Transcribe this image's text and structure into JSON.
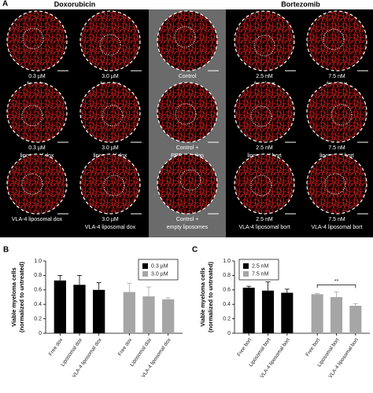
{
  "panel_a": {
    "letter": "A",
    "title_left": "Doxorubicin",
    "title_right": "Bortezomib",
    "images": [
      {
        "lines": [
          "0.3 µM",
          "free dox"
        ]
      },
      {
        "lines": [
          "3.0 µM",
          "free dox"
        ]
      },
      {
        "lines": [
          "Control"
        ]
      },
      {
        "lines": [
          "2.5 nM",
          "free bort"
        ]
      },
      {
        "lines": [
          "7.5 nM",
          "free bort"
        ]
      },
      {
        "lines": [
          "0.3 µM",
          "liposomal dox"
        ]
      },
      {
        "lines": [
          "3.0 µM",
          "liposomal dox"
        ]
      },
      {
        "lines": [
          "Control +",
          "PBS injection"
        ]
      },
      {
        "lines": [
          "2.5 nM",
          "liposomal bort"
        ]
      },
      {
        "lines": [
          "7.5 nM",
          "liposomal bort"
        ]
      },
      {
        "lines": [
          "VLA-4 liposomal dox"
        ]
      },
      {
        "lines": [
          "3.0 µM",
          "VLA-4 liposomal dox"
        ]
      },
      {
        "lines": [
          "Control +",
          "empty liposomes"
        ]
      },
      {
        "lines": [
          "2.5 nM",
          "VLA-4 liposomal bort"
        ]
      },
      {
        "lines": [
          "7.5 nM",
          "VLA-4 liposomal bort"
        ]
      }
    ]
  },
  "chart_data": [
    {
      "type": "bar",
      "letter": "B",
      "ylabel": [
        "Viable myeloma cells",
        "(normalized to untreated)"
      ],
      "categories": [
        "Free dox",
        "Liposomal dox",
        "VLA-4 liposomal dox",
        "Free dox",
        "Liposomal dox",
        "VLA-4 liposomal dox"
      ],
      "series": [
        {
          "name": "0.3 µM",
          "color": "#000000",
          "values": [
            0.73,
            0.67,
            0.6,
            null,
            null,
            null
          ],
          "errors": [
            0.07,
            0.13,
            0.1,
            null,
            null,
            null
          ]
        },
        {
          "name": "3.0 µM",
          "color": "#a6a6a6",
          "values": [
            null,
            null,
            null,
            0.57,
            0.51,
            0.47
          ],
          "errors": [
            null,
            null,
            null,
            0.12,
            0.13,
            0.02
          ]
        }
      ],
      "ylim": [
        0,
        1
      ],
      "yticks": [
        0,
        0.2,
        0.4,
        0.6,
        0.8,
        {
          "value": 1,
          "label": "1.0"
        }
      ],
      "legend": "top-right"
    },
    {
      "type": "bar",
      "letter": "C",
      "ylabel": [
        "Viable myeloma cells",
        "(normalized to untreated)"
      ],
      "categories": [
        "Free bort",
        "Liposomal bort",
        "VLA-4 liposomal bort",
        "Free bort",
        "Liposomal bort",
        "VLA-4 liposomal bort"
      ],
      "series": [
        {
          "name": "2.5 nM",
          "color": "#000000",
          "values": [
            0.63,
            0.59,
            0.56,
            null,
            null,
            null
          ],
          "errors": [
            0.02,
            0.12,
            0.05,
            null,
            null,
            null
          ]
        },
        {
          "name": "7.5 nM",
          "color": "#a6a6a6",
          "values": [
            null,
            null,
            null,
            0.54,
            0.5,
            0.38
          ],
          "errors": [
            null,
            null,
            null,
            0.01,
            0.07,
            0.03
          ]
        }
      ],
      "ylim": [
        0,
        1
      ],
      "yticks": [
        0,
        0.2,
        0.4,
        0.6,
        0.8,
        {
          "value": 1,
          "label": "1.0"
        }
      ],
      "legend": "top-left",
      "annotation": "**"
    }
  ]
}
